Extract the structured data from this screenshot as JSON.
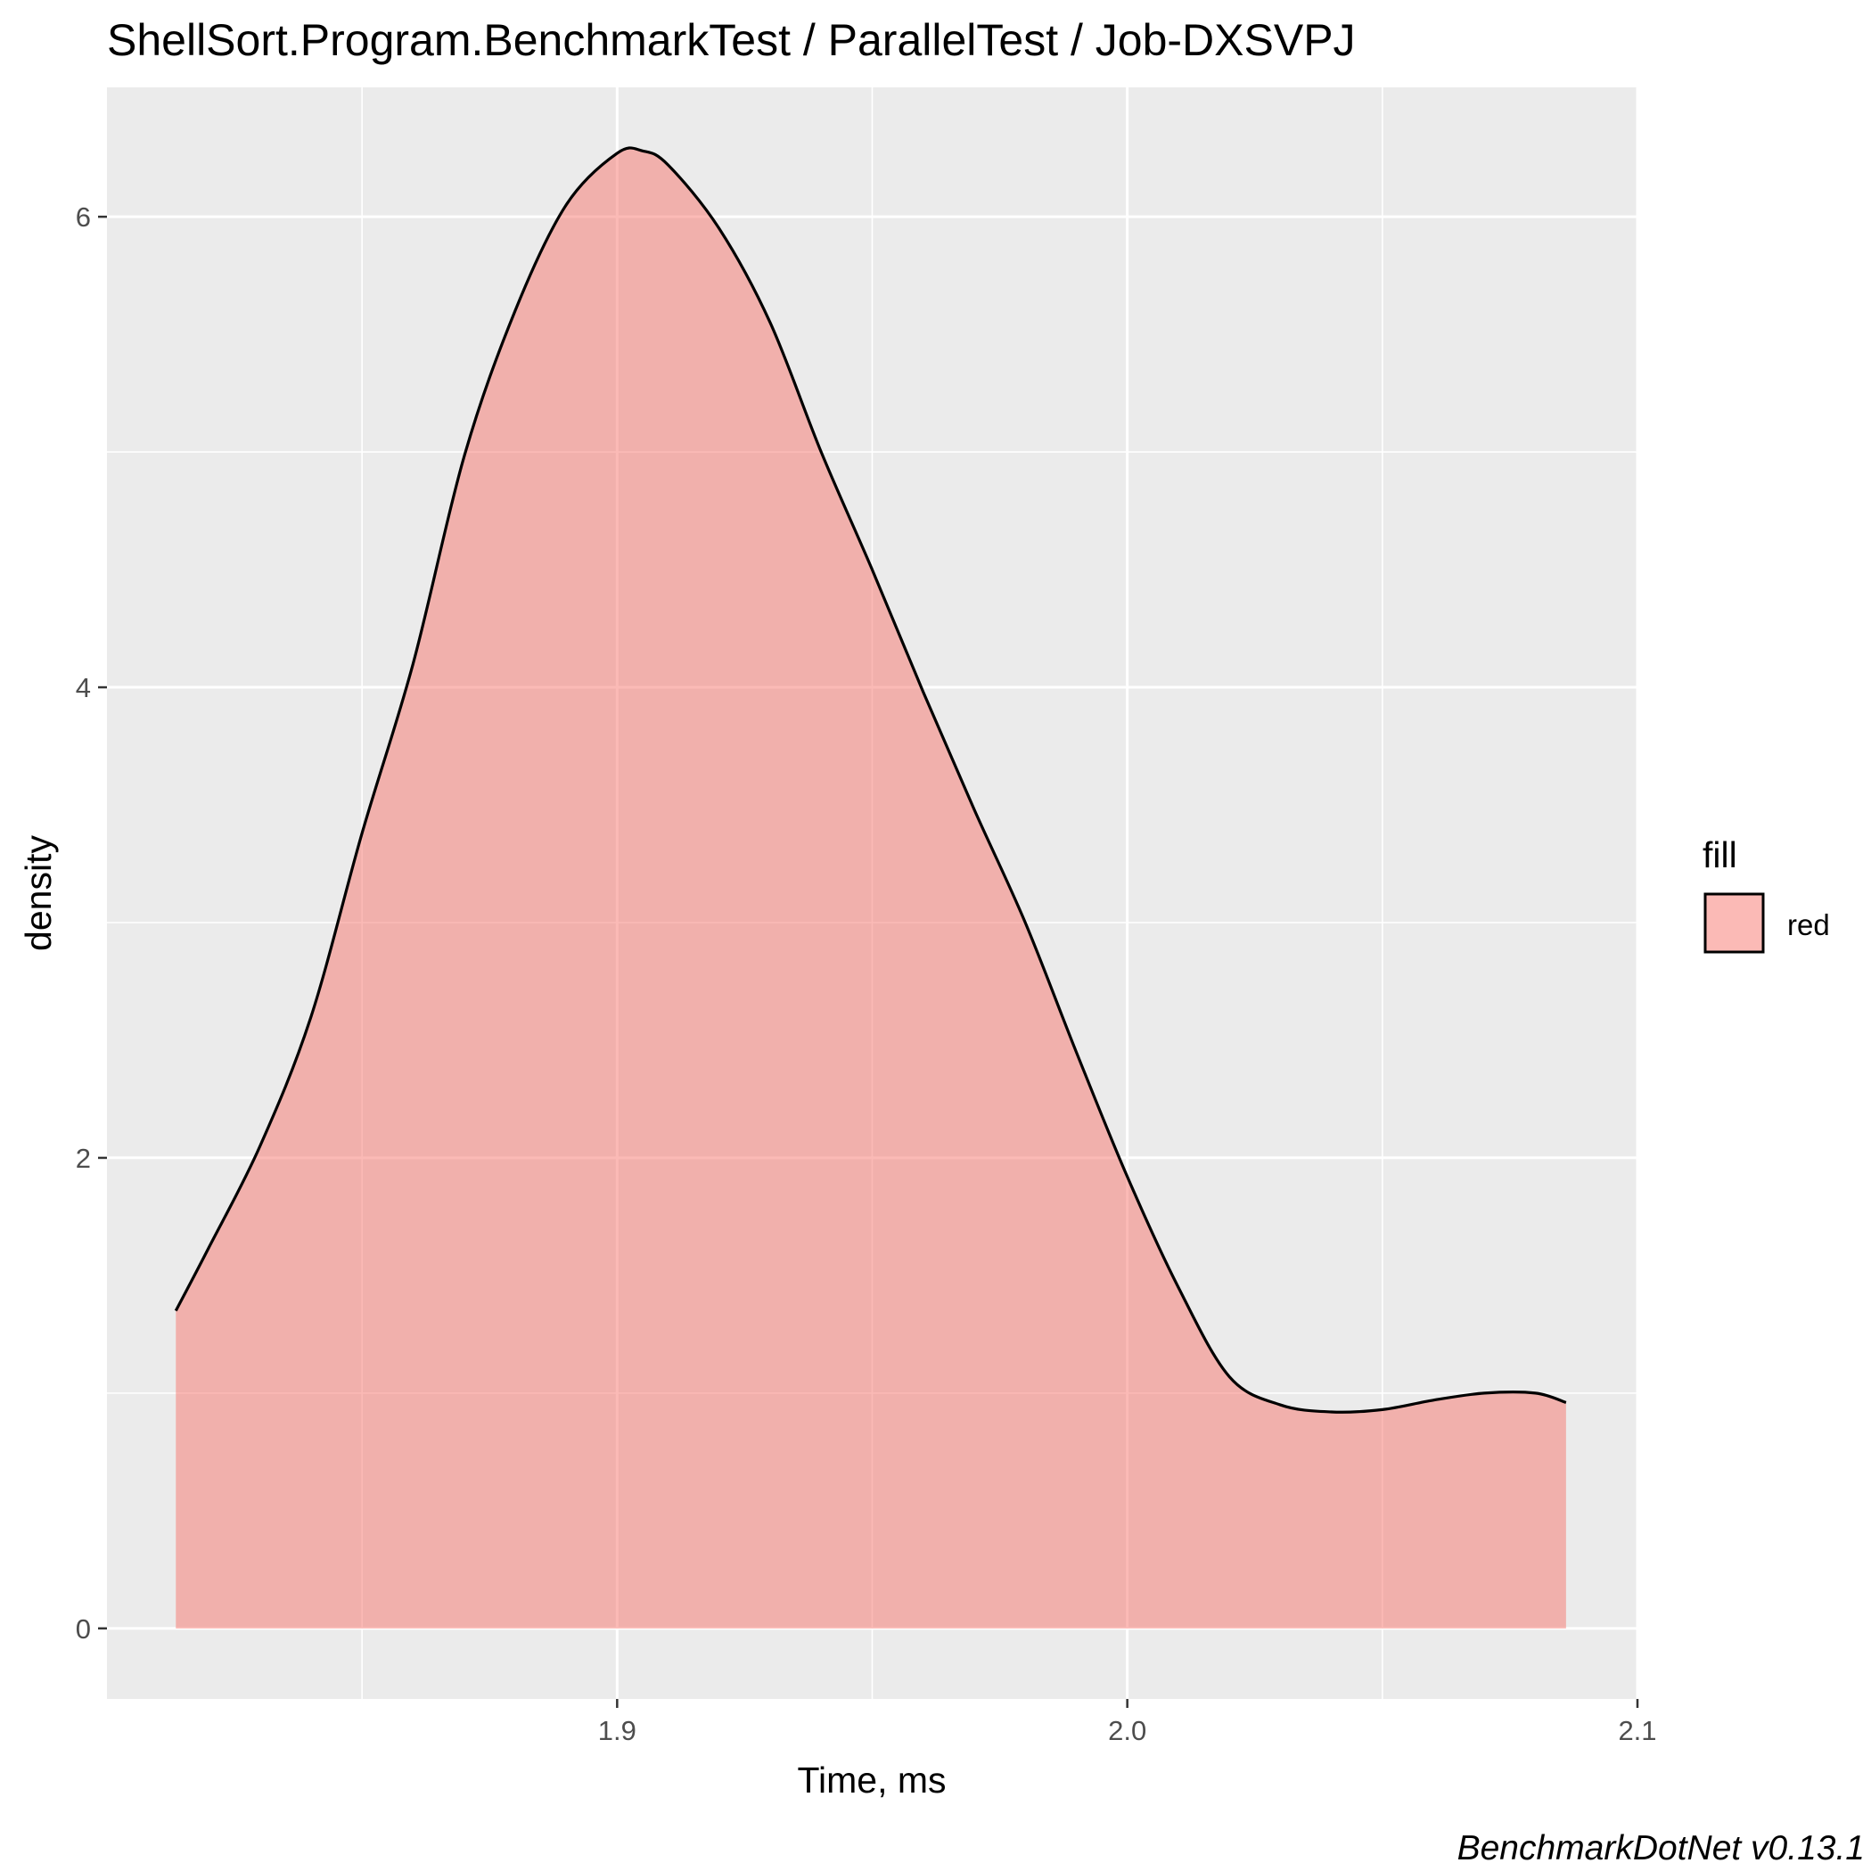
{
  "chart_data": {
    "type": "area",
    "title": "ShellSort.Program.BenchmarkTest / ParallelTest / Job-DXSVPJ",
    "xlabel": "Time, ms",
    "ylabel": "density",
    "xlim": [
      1.8,
      2.1
    ],
    "ylim": [
      -0.3,
      6.55
    ],
    "x_ticks": [
      1.9,
      2.0,
      2.1
    ],
    "x_tick_labels": [
      "1.9",
      "2.0",
      "2.1"
    ],
    "y_ticks": [
      0,
      2,
      4,
      6
    ],
    "y_tick_labels": [
      "0",
      "2",
      "4",
      "6"
    ],
    "grid": true,
    "legend": {
      "title": "fill",
      "position": "right",
      "entries": [
        {
          "label": "red",
          "color": "#F8766D"
        }
      ]
    },
    "caption": "BenchmarkDotNet v0.13.1",
    "fill_color": "#F8766D",
    "fill_opacity": 0.5,
    "series": [
      {
        "name": "red",
        "x": [
          1.8135,
          1.82,
          1.83,
          1.84,
          1.85,
          1.86,
          1.87,
          1.88,
          1.89,
          1.9,
          1.905,
          1.91,
          1.92,
          1.93,
          1.94,
          1.95,
          1.96,
          1.97,
          1.98,
          1.99,
          2.0,
          2.01,
          2.02,
          2.03,
          2.04,
          2.05,
          2.06,
          2.07,
          2.08,
          2.086
        ],
        "y": [
          1.35,
          1.62,
          2.05,
          2.6,
          3.38,
          4.1,
          4.98,
          5.6,
          6.05,
          6.27,
          6.28,
          6.22,
          5.95,
          5.55,
          5.0,
          4.5,
          3.98,
          3.48,
          3.0,
          2.45,
          1.92,
          1.45,
          1.07,
          0.95,
          0.92,
          0.93,
          0.97,
          1.0,
          1.0,
          0.96
        ]
      }
    ]
  }
}
